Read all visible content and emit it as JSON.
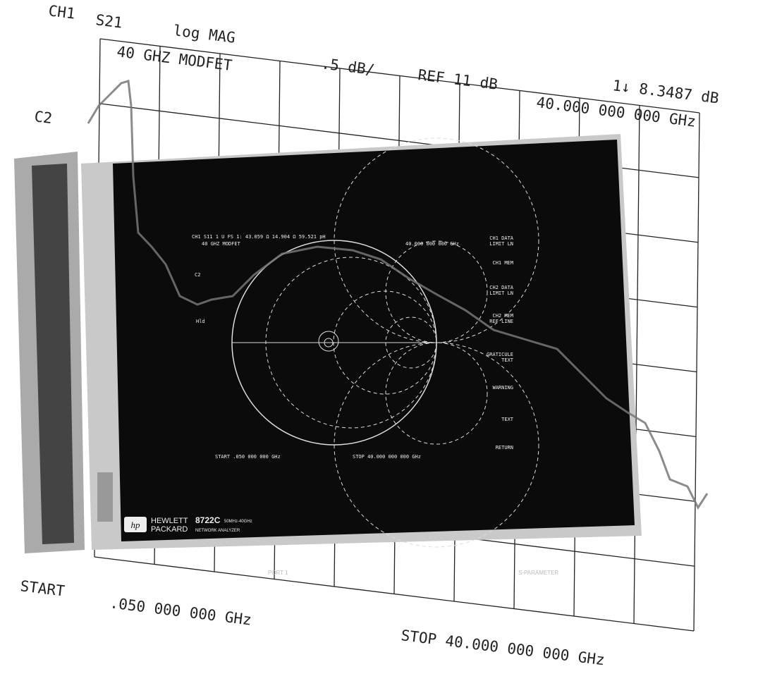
{
  "plot": {
    "channel": "CH1",
    "parameter": "S21",
    "format": "log MAG",
    "subtitle": "40 GHZ MODFET",
    "scale": ".5 dB/",
    "reference": "REF 11 dB",
    "marker_value": "1↓ 8.3487 dB",
    "marker_freq": "40.000 000 000 GHz",
    "channel2": "C2",
    "start": "START",
    "start_freq": ".050 000 000 GHz",
    "stop": "STOP 40.000 000 000 GHz"
  },
  "screen": {
    "header": "CH1 S11  1 U FS    1: 43.059 Ω   14.904 Ω   59.521 pH",
    "subtitle": "40 GHZ MODFET",
    "marker_freq": "40.000 000 000 GHz",
    "channel2": "C2",
    "hold": "Hld",
    "start": "START  .050 000 000 GHz",
    "stop": "STOP 40.000 000 000 GHz",
    "softkeys": [
      [
        "CH1 DATA",
        "LIMIT LN"
      ],
      [
        "CH1 MEM"
      ],
      [
        "CH2 DATA",
        "LIMIT LN"
      ],
      [
        "CH2 MEM",
        "REF LINE"
      ],
      [
        "GRATICULE",
        "TEXT"
      ],
      [
        "WARNING"
      ],
      [
        "TEXT"
      ],
      [
        "RETURN"
      ]
    ]
  },
  "brand": {
    "company_line1": "HEWLETT",
    "company_line2": "PACKARD",
    "model": "8722C",
    "range": "50MHz-40GHz",
    "product": "NETWORK ANALYZER"
  },
  "panel": {
    "port": "PORT 1",
    "label": "S-PARAMETER"
  }
}
